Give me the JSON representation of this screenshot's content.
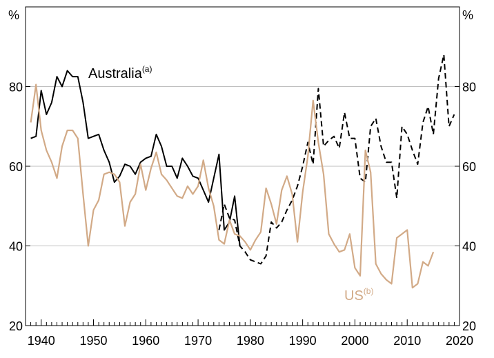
{
  "chart_data": {
    "type": "line",
    "title": "",
    "xlabel": "",
    "ylabel": "%",
    "ylabel_right": "%",
    "xlim": [
      1937,
      2020
    ],
    "ylim": [
      20,
      100
    ],
    "x_ticks": [
      1940,
      1950,
      1960,
      1970,
      1980,
      1990,
      2000,
      2010,
      2020
    ],
    "y_ticks": [
      20,
      40,
      60,
      80
    ],
    "grid": "horizontal",
    "colors": {
      "australia": "#000000",
      "us": "#d2aa87",
      "grid": "#bfbfbf",
      "axis": "#000000"
    },
    "series": [
      {
        "key": "australia_solid",
        "name": "Australia",
        "name_superscript": "(a)",
        "style": "solid",
        "x": [
          1938,
          1939,
          1940,
          1941,
          1942,
          1943,
          1944,
          1945,
          1946,
          1947,
          1948,
          1949,
          1950,
          1951,
          1952,
          1953,
          1954,
          1955,
          1956,
          1957,
          1958,
          1959,
          1960,
          1961,
          1962,
          1963,
          1964,
          1965,
          1966,
          1967,
          1968,
          1969,
          1970,
          1971,
          1972,
          1973,
          1974,
          1975,
          1976,
          1977,
          1978
        ],
        "values": [
          67,
          67.5,
          79,
          73,
          76,
          82.5,
          80,
          84,
          82.5,
          82.5,
          76,
          67,
          67.5,
          68,
          64,
          61,
          56,
          57.5,
          60.5,
          60,
          58,
          61,
          62,
          62.5,
          68,
          65,
          60,
          60,
          57,
          62,
          60,
          57.5,
          57,
          54,
          51,
          57,
          63,
          44,
          46,
          52.5,
          40
        ]
      },
      {
        "key": "australia_dashed",
        "name": "",
        "style": "dashed",
        "x": [
          1974,
          1975,
          1976,
          1977,
          1978,
          1979,
          1980,
          1981,
          1982,
          1983,
          1984,
          1985,
          1986,
          1987,
          1988,
          1989,
          1990,
          1991,
          1992,
          1993,
          1994,
          1995,
          1996,
          1997,
          1998,
          1999,
          2000,
          2001,
          2002,
          2003,
          2004,
          2005,
          2006,
          2007,
          2008,
          2009,
          2010,
          2011,
          2012,
          2013,
          2014,
          2015,
          2016,
          2017,
          2018,
          2019
        ],
        "values": [
          44,
          50.5,
          47,
          46.5,
          40,
          38.5,
          36.5,
          36,
          35.5,
          37.5,
          46,
          44.5,
          46,
          49,
          51.5,
          55,
          60,
          66,
          60.5,
          79.5,
          65,
          66.5,
          67.5,
          64.5,
          73.5,
          67,
          67,
          57,
          56,
          70,
          72,
          65,
          61,
          61,
          52,
          70,
          68,
          64,
          60.5,
          71,
          75,
          68,
          82,
          88,
          70,
          73
        ]
      },
      {
        "key": "us",
        "name": "US",
        "name_superscript": "(b)",
        "style": "solid",
        "x": [
          1938,
          1939,
          1940,
          1941,
          1942,
          1943,
          1944,
          1945,
          1946,
          1947,
          1948,
          1949,
          1950,
          1951,
          1952,
          1953,
          1954,
          1955,
          1956,
          1957,
          1958,
          1959,
          1960,
          1961,
          1962,
          1963,
          1964,
          1965,
          1966,
          1967,
          1968,
          1969,
          1970,
          1971,
          1972,
          1973,
          1974,
          1975,
          1976,
          1977,
          1978,
          1979,
          1980,
          1981,
          1982,
          1983,
          1984,
          1985,
          1986,
          1987,
          1988,
          1989,
          1990,
          1991,
          1992,
          1993,
          1994,
          1995,
          1996,
          1997,
          1998,
          1999,
          2000,
          2001,
          2002,
          2003,
          2004,
          2005,
          2006,
          2007,
          2008,
          2009,
          2010,
          2011,
          2012,
          2013,
          2014,
          2015
        ],
        "values": [
          71,
          80.5,
          69,
          64,
          61,
          57,
          65,
          69,
          69,
          67,
          53,
          40,
          49,
          51.5,
          58,
          58.5,
          58,
          56,
          45,
          51,
          53,
          60.5,
          54,
          59.5,
          63.5,
          58,
          56.5,
          54.5,
          52.5,
          52,
          55,
          53,
          55,
          61.5,
          54.5,
          50,
          41.5,
          40.5,
          46.5,
          43,
          42.5,
          41,
          39,
          41.5,
          43.5,
          54.5,
          50.5,
          45.5,
          54,
          57.5,
          53,
          41,
          53.5,
          62.5,
          76.5,
          66,
          58,
          43,
          40.5,
          38.5,
          39,
          43,
          34.5,
          32.5,
          64,
          58.5,
          35.5,
          33,
          31.5,
          30.5,
          42,
          43,
          44,
          29.5,
          30.5,
          36,
          35,
          38.5
        ]
      }
    ]
  }
}
